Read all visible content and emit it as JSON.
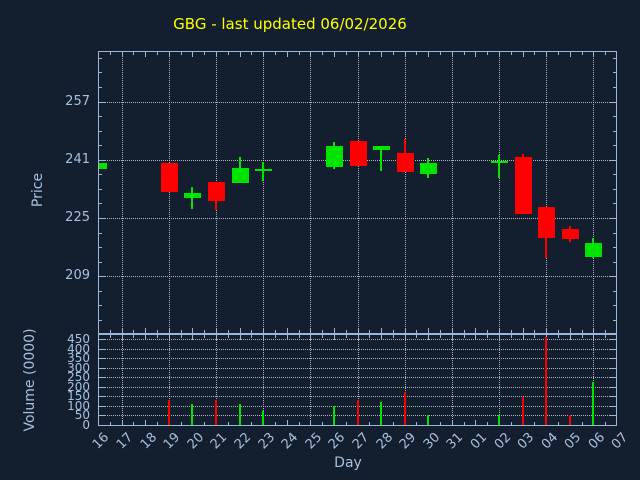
{
  "title": "GBG - last updated 06/02/2026",
  "colors": {
    "background": "#131f2e",
    "axis": "#9ab6d8",
    "label_text": "#a6c1e0",
    "title_text": "#ffff00",
    "up": "#00e400",
    "down": "#fe0000",
    "grid": "#c7d0d9"
  },
  "price_axis": {
    "label": "Price",
    "tick_labels": [
      "257",
      "241",
      "225",
      "209"
    ],
    "tick_values": [
      257,
      241,
      225,
      209
    ],
    "range": [
      193.4,
      270.6
    ],
    "minor_step": 4
  },
  "volume_axis": {
    "label": "Volume (0000)",
    "tick_labels": [
      "450",
      "400",
      "350",
      "300",
      "250",
      "200",
      "150",
      "100",
      "50",
      "0"
    ],
    "tick_values": [
      450,
      400,
      350,
      300,
      250,
      200,
      150,
      100,
      50,
      0
    ],
    "range": [
      0,
      471
    ]
  },
  "x_axis": {
    "label": "Day",
    "tick_labels": [
      "16",
      "17",
      "18",
      "19",
      "20",
      "21",
      "22",
      "23",
      "24",
      "25",
      "26",
      "27",
      "28",
      "29",
      "30",
      "31",
      "01",
      "02",
      "03",
      "04",
      "05",
      "06",
      "07"
    ],
    "gridline_labels": [
      "17",
      "19",
      "21",
      "23",
      "25",
      "27",
      "29",
      "31",
      "02",
      "04",
      "06"
    ]
  },
  "chart_data": {
    "type": "candlestick",
    "title": "GBG - last updated 06/02/2026",
    "xlabel": "Day",
    "ylabel": "Price",
    "y2label": "Volume (0000)",
    "price_ylim": [
      193.4,
      270.6
    ],
    "volume_ylim": [
      0,
      471
    ],
    "grid": true,
    "candles": [
      {
        "day": "16",
        "open": 238.4,
        "high": 240.1,
        "low": 238.4,
        "close": 240.1
      },
      {
        "day": "19",
        "open": 240.1,
        "high": 240.1,
        "low": 232.2,
        "close": 232.2
      },
      {
        "day": "20",
        "open": 230.4,
        "high": 233.6,
        "low": 227.5,
        "close": 231.9
      },
      {
        "day": "21",
        "open": 234.9,
        "high": 234.9,
        "low": 227.3,
        "close": 229.7
      },
      {
        "day": "22",
        "open": 234.7,
        "high": 241.7,
        "low": 234.7,
        "close": 238.7
      },
      {
        "day": "23",
        "open": 238.3,
        "high": 240.4,
        "low": 235.2,
        "close": 238.5
      },
      {
        "day": "26",
        "open": 239.0,
        "high": 245.9,
        "low": 238.4,
        "close": 244.7
      },
      {
        "day": "27",
        "open": 246.1,
        "high": 246.1,
        "low": 239.3,
        "close": 239.3
      },
      {
        "day": "28",
        "open": 243.7,
        "high": 244.9,
        "low": 238.0,
        "close": 244.9
      },
      {
        "day": "29",
        "open": 242.9,
        "high": 246.7,
        "low": 237.6,
        "close": 237.6
      },
      {
        "day": "30",
        "open": 237.0,
        "high": 241.5,
        "low": 236.1,
        "close": 240.0
      },
      {
        "day": "02",
        "open": 240.5,
        "high": 242.2,
        "low": 235.9,
        "close": 240.6
      },
      {
        "day": "03",
        "open": 241.7,
        "high": 242.5,
        "low": 226.1,
        "close": 226.1
      },
      {
        "day": "04",
        "open": 228.1,
        "high": 228.1,
        "low": 214.0,
        "close": 219.5
      },
      {
        "day": "05",
        "open": 221.9,
        "high": 222.8,
        "low": 218.5,
        "close": 219.2
      },
      {
        "day": "06",
        "open": 214.4,
        "high": 219.4,
        "low": 214.0,
        "close": 218.1
      }
    ],
    "volumes": [
      {
        "day": "19",
        "value": 130,
        "direction": "down"
      },
      {
        "day": "20",
        "value": 110,
        "direction": "up"
      },
      {
        "day": "21",
        "value": 130,
        "direction": "down"
      },
      {
        "day": "22",
        "value": 110,
        "direction": "up"
      },
      {
        "day": "23",
        "value": 75,
        "direction": "up"
      },
      {
        "day": "26",
        "value": 100,
        "direction": "up"
      },
      {
        "day": "27",
        "value": 130,
        "direction": "down"
      },
      {
        "day": "28",
        "value": 120,
        "direction": "up"
      },
      {
        "day": "29",
        "value": 175,
        "direction": "down"
      },
      {
        "day": "30",
        "value": 50,
        "direction": "up"
      },
      {
        "day": "02",
        "value": 50,
        "direction": "up"
      },
      {
        "day": "03",
        "value": 145,
        "direction": "down"
      },
      {
        "day": "04",
        "value": 460,
        "direction": "down"
      },
      {
        "day": "05",
        "value": 50,
        "direction": "down"
      },
      {
        "day": "06",
        "value": 225,
        "direction": "up"
      }
    ]
  }
}
